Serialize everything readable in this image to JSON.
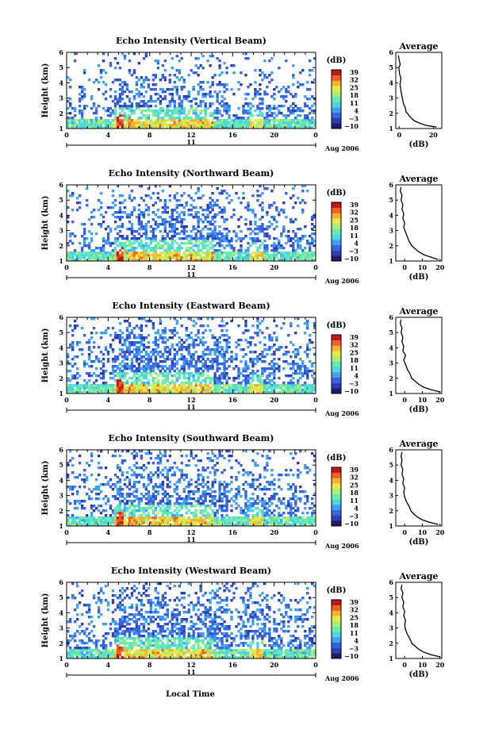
{
  "figure": {
    "xlabel": "Local Time",
    "date_label": "Aug 2006",
    "day_label": "11",
    "cbar_unit": "(dB)",
    "avg_title": "Average",
    "avg_xlabel": "(dB)",
    "ylabel": "Height (km)"
  },
  "colormap": [
    "#1e1a6e",
    "#2d3fb0",
    "#3a63e0",
    "#3fa2f0",
    "#4fd4e0",
    "#64ecb4",
    "#a8f070",
    "#e8e84a",
    "#f8b030",
    "#f06020",
    "#c01818"
  ],
  "chart_data": [
    {
      "type": "heatmap",
      "title": "Echo Intensity (Vertical Beam)",
      "x_ticks": [
        "0",
        "4",
        "8",
        "12",
        "16",
        "20",
        "0"
      ],
      "y_ticks": [
        "1",
        "2",
        "3",
        "4",
        "5",
        "6"
      ],
      "xlim": [
        0,
        24
      ],
      "ylim": [
        1,
        6
      ],
      "colorbar": {
        "ticks": [
          "39",
          "32",
          "25",
          "18",
          "11",
          "4",
          "−3",
          "−10"
        ],
        "range": [
          -10,
          39
        ]
      },
      "average": {
        "x_ticks": [
          "0",
          "20"
        ],
        "xlim": [
          -2,
          25
        ],
        "y_ticks": [
          "1",
          "2",
          "3",
          "4",
          "5",
          "6"
        ],
        "profile": [
          [
            22,
            1.1
          ],
          [
            16,
            1.2
          ],
          [
            12,
            1.35
          ],
          [
            9,
            1.5
          ],
          [
            7,
            1.7
          ],
          [
            5.5,
            1.9
          ],
          [
            4,
            2.1
          ],
          [
            3.5,
            2.4
          ],
          [
            2.5,
            2.6
          ],
          [
            2,
            2.9
          ],
          [
            1.5,
            3.2
          ],
          [
            1,
            3.5
          ],
          [
            0.5,
            3.9
          ],
          [
            1,
            4.3
          ],
          [
            0.2,
            4.6
          ],
          [
            -0.2,
            5.0
          ],
          [
            0.6,
            5.2
          ],
          [
            0,
            5.5
          ],
          [
            -0.5,
            5.8
          ]
        ]
      }
    },
    {
      "type": "heatmap",
      "title": "Echo Intensity (Northward Beam)",
      "x_ticks": [
        "0",
        "4",
        "8",
        "12",
        "16",
        "20",
        "0"
      ],
      "y_ticks": [
        "1",
        "2",
        "3",
        "4",
        "5",
        "6"
      ],
      "xlim": [
        0,
        24
      ],
      "ylim": [
        1,
        6
      ],
      "colorbar": {
        "ticks": [
          "39",
          "32",
          "25",
          "18",
          "11",
          "4",
          "−3",
          "−10"
        ],
        "range": [
          -10,
          39
        ]
      },
      "average": {
        "x_ticks": [
          "0",
          "10",
          "20"
        ],
        "xlim": [
          -5,
          21
        ],
        "y_ticks": [
          "1",
          "2",
          "3",
          "4",
          "5",
          "6"
        ],
        "profile": [
          [
            19,
            1.1
          ],
          [
            15,
            1.25
          ],
          [
            11,
            1.4
          ],
          [
            8,
            1.6
          ],
          [
            6,
            1.8
          ],
          [
            4,
            2.0
          ],
          [
            2.5,
            2.3
          ],
          [
            1.5,
            2.6
          ],
          [
            0.5,
            2.9
          ],
          [
            -0.5,
            3.2
          ],
          [
            0,
            3.5
          ],
          [
            -1,
            3.8
          ],
          [
            -0.5,
            4.1
          ],
          [
            -1.5,
            4.4
          ],
          [
            -1,
            4.7
          ],
          [
            -2,
            5.0
          ],
          [
            -1.5,
            5.3
          ],
          [
            -2.5,
            5.6
          ],
          [
            -2,
            5.85
          ]
        ]
      }
    },
    {
      "type": "heatmap",
      "title": "Echo Intensity (Eastward Beam)",
      "x_ticks": [
        "0",
        "4",
        "8",
        "12",
        "16",
        "20",
        "0"
      ],
      "y_ticks": [
        "1",
        "2",
        "3",
        "4",
        "5",
        "6"
      ],
      "xlim": [
        0,
        24
      ],
      "ylim": [
        1,
        6
      ],
      "colorbar": {
        "ticks": [
          "39",
          "32",
          "25",
          "18",
          "11",
          "4",
          "−3",
          "−10"
        ],
        "range": [
          -10,
          39
        ]
      },
      "average": {
        "x_ticks": [
          "0",
          "10",
          "20"
        ],
        "xlim": [
          -5,
          21
        ],
        "y_ticks": [
          "1",
          "2",
          "3",
          "4",
          "5",
          "6"
        ],
        "profile": [
          [
            20,
            1.1
          ],
          [
            15,
            1.25
          ],
          [
            11,
            1.4
          ],
          [
            8,
            1.6
          ],
          [
            6,
            1.8
          ],
          [
            4,
            2.0
          ],
          [
            3,
            2.3
          ],
          [
            1.5,
            2.6
          ],
          [
            0.5,
            2.9
          ],
          [
            -0.5,
            3.2
          ],
          [
            0.5,
            3.5
          ],
          [
            -1,
            3.8
          ],
          [
            -0.5,
            4.1
          ],
          [
            -1.5,
            4.4
          ],
          [
            -1,
            4.7
          ],
          [
            -2,
            5.0
          ],
          [
            -1.5,
            5.3
          ],
          [
            -2.5,
            5.6
          ],
          [
            -2,
            5.85
          ]
        ]
      }
    },
    {
      "type": "heatmap",
      "title": "Echo Intensity (Southward Beam)",
      "x_ticks": [
        "0",
        "4",
        "8",
        "12",
        "16",
        "20",
        "0"
      ],
      "y_ticks": [
        "1",
        "2",
        "3",
        "4",
        "5",
        "6"
      ],
      "xlim": [
        0,
        24
      ],
      "ylim": [
        1,
        6
      ],
      "colorbar": {
        "ticks": [
          "39",
          "32",
          "25",
          "18",
          "11",
          "4",
          "−3",
          "−10"
        ],
        "range": [
          -10,
          39
        ]
      },
      "average": {
        "x_ticks": [
          "0",
          "10",
          "20"
        ],
        "xlim": [
          -5,
          21
        ],
        "y_ticks": [
          "1",
          "2",
          "3",
          "4",
          "5",
          "6"
        ],
        "profile": [
          [
            19,
            1.1
          ],
          [
            14,
            1.25
          ],
          [
            10,
            1.4
          ],
          [
            7,
            1.6
          ],
          [
            5,
            1.8
          ],
          [
            3.5,
            2.0
          ],
          [
            2.5,
            2.3
          ],
          [
            1,
            2.6
          ],
          [
            0,
            2.9
          ],
          [
            -0.5,
            3.2
          ],
          [
            0,
            3.5
          ],
          [
            -1,
            3.8
          ],
          [
            -0.5,
            4.1
          ],
          [
            -1.5,
            4.4
          ],
          [
            -1,
            4.7
          ],
          [
            -2,
            5.0
          ],
          [
            -1.5,
            5.3
          ],
          [
            -2,
            5.6
          ],
          [
            -1.5,
            5.85
          ]
        ]
      }
    },
    {
      "type": "heatmap",
      "title": "Echo Intensity (Westward Beam)",
      "x_ticks": [
        "0",
        "4",
        "8",
        "12",
        "16",
        "20",
        "0"
      ],
      "y_ticks": [
        "1",
        "2",
        "3",
        "4",
        "5",
        "6"
      ],
      "xlim": [
        0,
        24
      ],
      "ylim": [
        1,
        6
      ],
      "colorbar": {
        "ticks": [
          "39",
          "32",
          "25",
          "18",
          "11",
          "4",
          "−3",
          "−10"
        ],
        "range": [
          -10,
          39
        ]
      },
      "average": {
        "x_ticks": [
          "0",
          "10",
          "20"
        ],
        "xlim": [
          -5,
          21
        ],
        "y_ticks": [
          "1",
          "2",
          "3",
          "4",
          "5",
          "6"
        ],
        "profile": [
          [
            20,
            1.1
          ],
          [
            15,
            1.25
          ],
          [
            11,
            1.4
          ],
          [
            8,
            1.6
          ],
          [
            6,
            1.8
          ],
          [
            4,
            2.0
          ],
          [
            3,
            2.3
          ],
          [
            1.5,
            2.6
          ],
          [
            0.5,
            2.9
          ],
          [
            0,
            3.2
          ],
          [
            0.5,
            3.5
          ],
          [
            -0.5,
            3.8
          ],
          [
            0,
            4.1
          ],
          [
            -1,
            4.4
          ],
          [
            -0.5,
            4.7
          ],
          [
            -1.5,
            5.0
          ],
          [
            -1,
            5.3
          ],
          [
            -2,
            5.6
          ],
          [
            -1.5,
            5.85
          ]
        ]
      }
    }
  ]
}
